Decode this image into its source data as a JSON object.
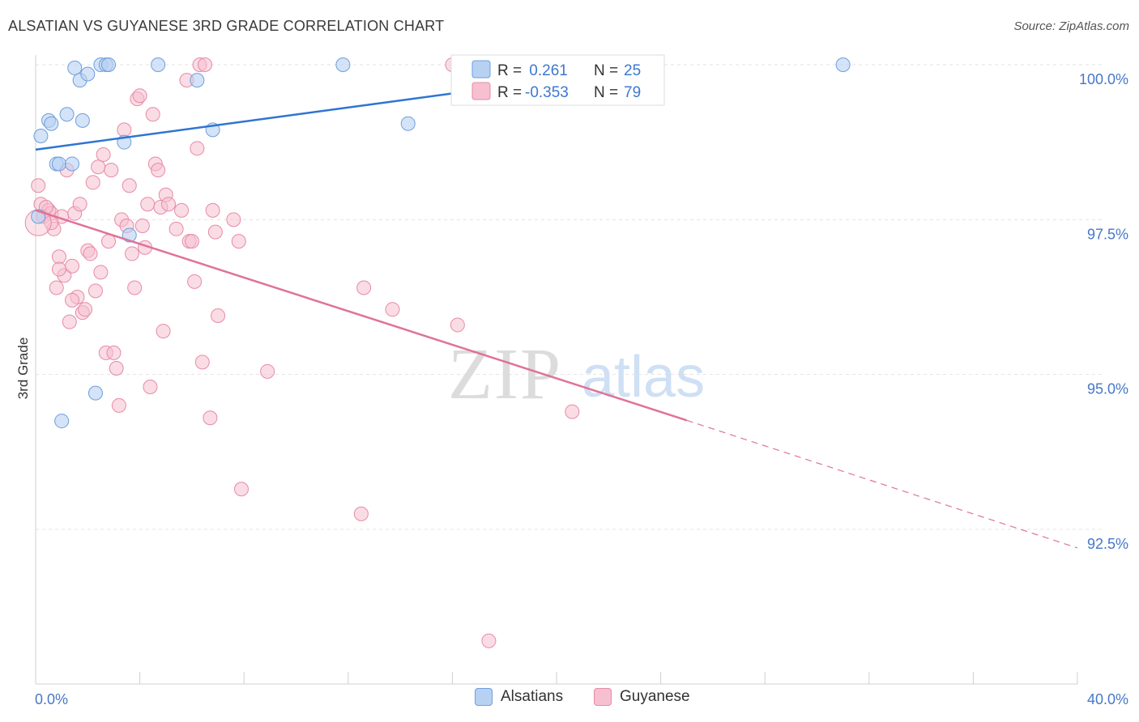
{
  "header": {
    "title": "ALSATIAN VS GUYANESE 3RD GRADE CORRELATION CHART",
    "source": "Source: ZipAtlas.com"
  },
  "watermark": {
    "zip": "ZIP",
    "atlas": "atlas"
  },
  "colors": {
    "blue_fill": "#b7d1f2",
    "blue_stroke": "#6e9fdc",
    "blue_line": "#2e75d1",
    "pink_fill": "#f6c0d0",
    "pink_stroke": "#e78aa8",
    "pink_line": "#e0729a",
    "axis_text": "#4678c8",
    "grid": "#e3e3e3"
  },
  "legend": {
    "rows": [
      {
        "r_label": "R =",
        "r_value": " 0.261",
        "n_label": "N =",
        "n_value": "25",
        "series": "Alsatians"
      },
      {
        "r_label": "R =",
        "r_value": "-0.353",
        "n_label": "N =",
        "n_value": "79",
        "series": "Guyanese"
      }
    ]
  },
  "chart_data": {
    "type": "scatter",
    "title": "ALSATIAN VS GUYANESE 3RD GRADE CORRELATION CHART",
    "xlabel": "",
    "ylabel": "3rd Grade",
    "xlim": [
      0,
      40
    ],
    "ylim": [
      90.0,
      100.3
    ],
    "x_tick_labels": [
      "0.0%",
      "40.0%"
    ],
    "y_ticks": [
      92.5,
      95.0,
      97.5,
      100.0
    ],
    "y_tick_labels": [
      "92.5%",
      "95.0%",
      "97.5%",
      "100.0%"
    ],
    "grid": true,
    "legend_position": "top-center",
    "series": [
      {
        "name": "Alsatians",
        "r": 0.261,
        "n": 25,
        "trend": {
          "x": [
            0,
            24.0
          ],
          "y": [
            98.63,
            99.99
          ]
        },
        "points": [
          [
            0.2,
            98.85
          ],
          [
            0.5,
            99.1
          ],
          [
            0.6,
            99.05
          ],
          [
            0.8,
            98.4
          ],
          [
            0.9,
            98.4
          ],
          [
            1.2,
            99.2
          ],
          [
            1.4,
            98.4
          ],
          [
            1.5,
            99.95
          ],
          [
            1.7,
            99.75
          ],
          [
            1.8,
            99.1
          ],
          [
            2.0,
            99.85
          ],
          [
            2.5,
            100.0
          ],
          [
            2.7,
            100.0
          ],
          [
            2.8,
            100.0
          ],
          [
            3.4,
            98.75
          ],
          [
            3.6,
            97.25
          ],
          [
            4.7,
            100.0
          ],
          [
            6.2,
            99.75
          ],
          [
            6.8,
            98.95
          ],
          [
            11.8,
            100.0
          ],
          [
            14.3,
            99.05
          ],
          [
            31.0,
            100.0
          ],
          [
            0.1,
            97.55
          ],
          [
            1.0,
            94.25
          ],
          [
            2.3,
            94.7
          ]
        ]
      },
      {
        "name": "Guyanese",
        "r": -0.353,
        "n": 79,
        "trend": {
          "x": [
            0,
            25.0
          ],
          "y": [
            97.65,
            94.26
          ]
        },
        "trend_dashed": {
          "x": [
            25.0,
            40.0
          ],
          "y": [
            94.26,
            92.2
          ]
        },
        "points": [
          [
            0.1,
            98.05
          ],
          [
            0.2,
            97.75
          ],
          [
            0.3,
            97.55
          ],
          [
            0.5,
            97.65
          ],
          [
            0.6,
            97.6
          ],
          [
            0.7,
            97.35
          ],
          [
            0.8,
            96.4
          ],
          [
            0.9,
            96.9
          ],
          [
            1.0,
            97.55
          ],
          [
            1.1,
            96.6
          ],
          [
            1.2,
            98.3
          ],
          [
            1.3,
            95.85
          ],
          [
            1.4,
            96.75
          ],
          [
            1.5,
            97.6
          ],
          [
            1.6,
            96.25
          ],
          [
            1.7,
            97.75
          ],
          [
            1.8,
            96.0
          ],
          [
            1.9,
            96.05
          ],
          [
            2.0,
            97.0
          ],
          [
            2.1,
            96.95
          ],
          [
            2.2,
            98.1
          ],
          [
            2.3,
            96.35
          ],
          [
            2.4,
            98.35
          ],
          [
            2.5,
            96.65
          ],
          [
            2.6,
            98.55
          ],
          [
            2.7,
            95.35
          ],
          [
            2.8,
            97.15
          ],
          [
            2.9,
            98.3
          ],
          [
            3.0,
            95.35
          ],
          [
            3.1,
            95.1
          ],
          [
            3.2,
            94.5
          ],
          [
            3.3,
            97.5
          ],
          [
            3.4,
            98.95
          ],
          [
            3.5,
            97.4
          ],
          [
            3.6,
            98.05
          ],
          [
            3.7,
            96.95
          ],
          [
            3.8,
            96.4
          ],
          [
            3.9,
            99.45
          ],
          [
            4.0,
            99.5
          ],
          [
            4.1,
            97.4
          ],
          [
            4.2,
            97.05
          ],
          [
            4.3,
            97.75
          ],
          [
            4.4,
            94.8
          ],
          [
            4.5,
            99.2
          ],
          [
            4.6,
            98.4
          ],
          [
            4.7,
            98.3
          ],
          [
            4.8,
            97.7
          ],
          [
            4.9,
            95.7
          ],
          [
            5.0,
            97.9
          ],
          [
            5.1,
            97.75
          ],
          [
            5.4,
            97.35
          ],
          [
            5.6,
            97.65
          ],
          [
            5.8,
            99.75
          ],
          [
            5.9,
            97.15
          ],
          [
            6.0,
            97.15
          ],
          [
            6.1,
            96.5
          ],
          [
            6.2,
            98.65
          ],
          [
            6.3,
            100.0
          ],
          [
            6.4,
            95.2
          ],
          [
            6.5,
            100.0
          ],
          [
            6.7,
            94.3
          ],
          [
            6.8,
            97.65
          ],
          [
            6.9,
            97.3
          ],
          [
            7.0,
            95.95
          ],
          [
            7.6,
            97.5
          ],
          [
            7.8,
            97.15
          ],
          [
            7.9,
            93.15
          ],
          [
            8.9,
            95.05
          ],
          [
            12.5,
            92.75
          ],
          [
            12.6,
            96.4
          ],
          [
            13.7,
            96.05
          ],
          [
            16.2,
            95.8
          ],
          [
            17.4,
            90.7
          ],
          [
            20.6,
            94.4
          ],
          [
            0.4,
            97.7
          ],
          [
            0.6,
            97.45
          ],
          [
            0.9,
            96.7
          ],
          [
            1.4,
            96.2
          ],
          [
            16.0,
            100.0
          ]
        ]
      }
    ]
  },
  "legend_bottom": [
    "Alsatians",
    "Guyanese"
  ]
}
